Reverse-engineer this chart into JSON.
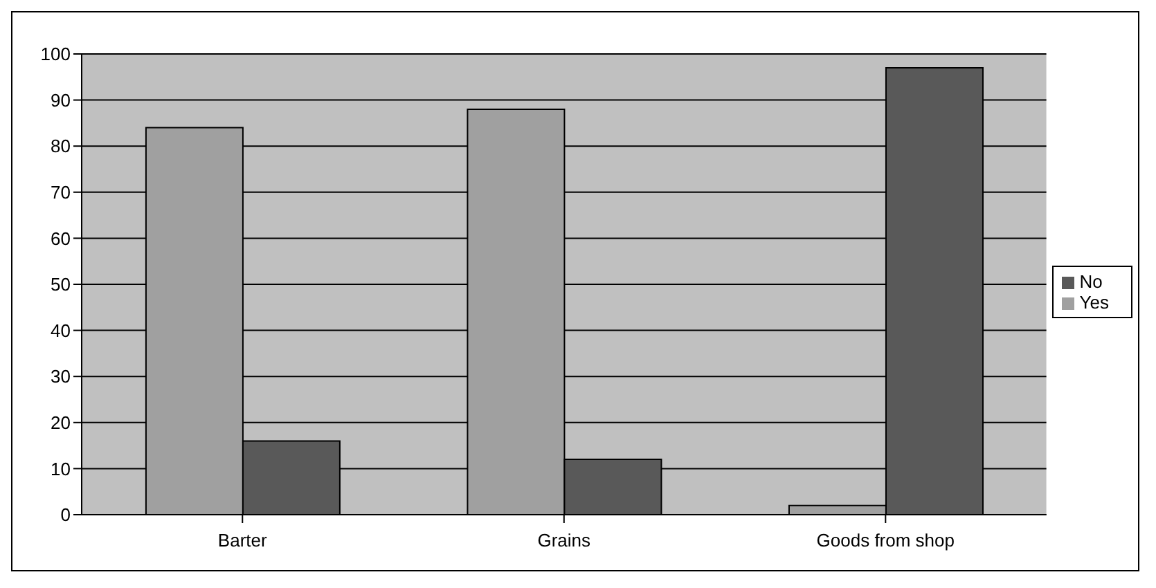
{
  "chart_data": {
    "type": "bar",
    "categories": [
      "Barter",
      "Grains",
      "Goods from shop"
    ],
    "series": [
      {
        "name": "Yes",
        "color": "#a0a0a0",
        "values": [
          84,
          88,
          2
        ]
      },
      {
        "name": "No",
        "color": "#595959",
        "values": [
          16,
          12,
          97
        ]
      }
    ],
    "ylim": [
      0,
      100
    ],
    "yticks": [
      0,
      10,
      20,
      30,
      40,
      50,
      60,
      70,
      80,
      90,
      100
    ],
    "grid": "y",
    "legend": "right"
  }
}
